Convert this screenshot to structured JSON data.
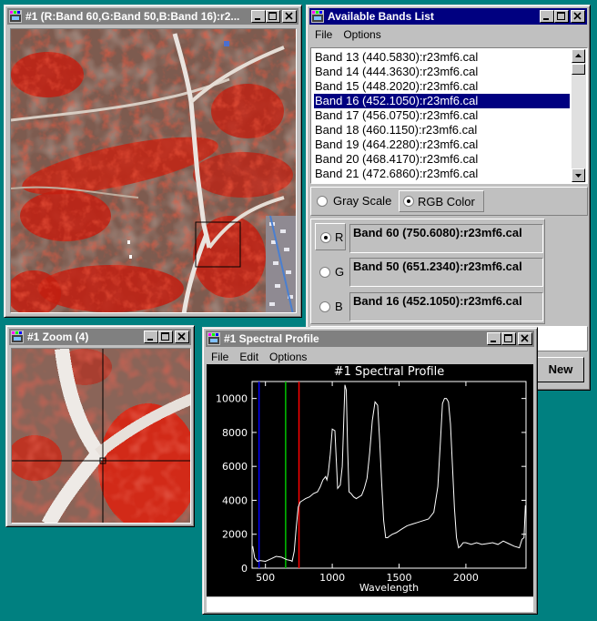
{
  "image_window": {
    "title": "#1 (R:Band 60,G:Band 50,B:Band 16):r2..."
  },
  "bands_window": {
    "title": "Available Bands List",
    "menu": [
      "File",
      "Options"
    ],
    "bands": [
      "Band 13 (440.5830):r23mf6.cal",
      "Band 14 (444.3630):r23mf6.cal",
      "Band 15 (448.2020):r23mf6.cal",
      "Band 16 (452.1050):r23mf6.cal",
      "Band 17 (456.0750):r23mf6.cal",
      "Band 18 (460.1150):r23mf6.cal",
      "Band 19 (464.2280):r23mf6.cal",
      "Band 20 (468.4170):r23mf6.cal",
      "Band 21 (472.6860):r23mf6.cal"
    ],
    "selected_band": "Band 16 (452.1050):r23mf6.cal",
    "mode_gray": "Gray Scale",
    "mode_rgb": "RGB Color",
    "r_label": "R",
    "g_label": "G",
    "b_label": "B",
    "r_band": "Band 60 (750.6080):r23mf6.cal",
    "g_band": "Band 50 (651.2340):r23mf6.cal",
    "b_band": "Band 16 (452.1050):r23mf6.cal",
    "new_button": "New"
  },
  "zoom_window": {
    "title": "#1 Zoom (4)"
  },
  "profile_window": {
    "title": "#1 Spectral Profile",
    "menu": [
      "File",
      "Edit",
      "Options"
    ]
  },
  "colors": {
    "active_title": "#000080",
    "inactive_title": "#808080",
    "desktop": "#008080",
    "r_marker": "#ff0000",
    "g_marker": "#00c000",
    "b_marker": "#0000ff"
  },
  "chart_data": {
    "type": "line",
    "title": "#1 Spectral Profile",
    "xlabel": "Wavelength",
    "ylabel": "",
    "xlim": [
      400,
      2450
    ],
    "ylim": [
      0,
      11000
    ],
    "xticks": [
      500,
      1000,
      1500,
      2000
    ],
    "yticks": [
      0,
      2000,
      4000,
      6000,
      8000,
      10000
    ],
    "markers": [
      {
        "band": "B",
        "x": 452
      },
      {
        "band": "G",
        "x": 651
      },
      {
        "band": "R",
        "x": 751
      }
    ],
    "series": [
      {
        "x": [
          405,
          420,
          440,
          460,
          500,
          540,
          580,
          620,
          660,
          690,
          700,
          715,
          730,
          745,
          760,
          780,
          800,
          830,
          860,
          890,
          910,
          930,
          950,
          960,
          970,
          985,
          1000,
          1020,
          1040,
          1060,
          1075,
          1085,
          1095,
          1105,
          1115,
          1125,
          1140,
          1160,
          1180,
          1200,
          1220,
          1240,
          1260,
          1280,
          1300,
          1320,
          1340,
          1355,
          1370,
          1385,
          1400,
          1415,
          1430,
          1450,
          1480,
          1520,
          1560,
          1600,
          1640,
          1680,
          1720,
          1760,
          1790,
          1810,
          1825,
          1840,
          1855,
          1870,
          1885,
          1900,
          1915,
          1930,
          1945,
          1960,
          1980,
          2000,
          2040,
          2080,
          2120,
          2160,
          2200,
          2240,
          2280,
          2320,
          2360,
          2400,
          2420,
          2435,
          2445
        ],
        "values": [
          1300,
          600,
          400,
          450,
          400,
          550,
          700,
          650,
          500,
          450,
          400,
          1000,
          2400,
          3600,
          3900,
          4000,
          4100,
          4200,
          4400,
          4500,
          4800,
          5200,
          5400,
          5200,
          5600,
          6700,
          8200,
          8100,
          4700,
          4900,
          6000,
          8500,
          10800,
          10500,
          7000,
          4500,
          4400,
          4200,
          4100,
          4200,
          4300,
          4700,
          5300,
          6800,
          8700,
          9800,
          9600,
          7500,
          5000,
          2800,
          1800,
          1800,
          1900,
          2000,
          2100,
          2300,
          2500,
          2600,
          2700,
          2800,
          2900,
          3300,
          4800,
          7500,
          9700,
          10000,
          10000,
          9800,
          8500,
          6000,
          3500,
          1800,
          1200,
          1300,
          1500,
          1500,
          1400,
          1500,
          1400,
          1450,
          1500,
          1400,
          1600,
          1450,
          1300,
          1200,
          1700,
          1800,
          3700
        ]
      }
    ]
  }
}
